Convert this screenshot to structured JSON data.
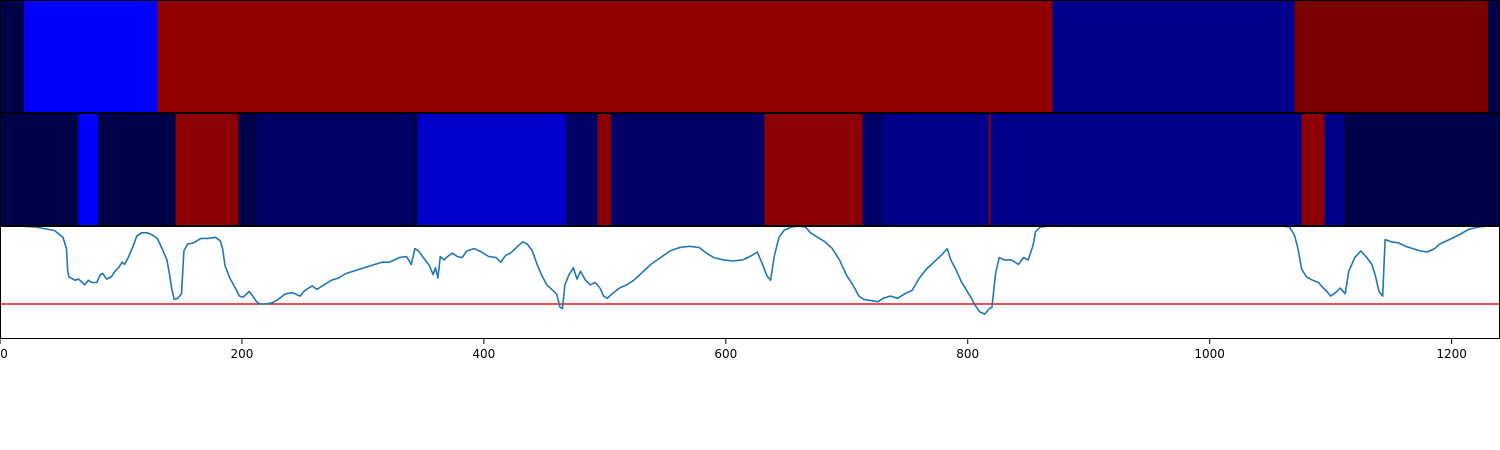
{
  "chart_data": [
    {
      "type": "heatmap",
      "title": "",
      "xlim": [
        0,
        1240
      ],
      "colors": {
        "dark_navy": "#000348",
        "navy": "#000066",
        "medium_blue": "#00008b",
        "bright_blue": "#0000ff",
        "royal_blue": "#0000c8",
        "dark_red": "#8b0000",
        "red": "#920000",
        "maroon": "#780000"
      },
      "segments": [
        {
          "x0": 0,
          "x1": 20,
          "color": "#000348"
        },
        {
          "x0": 20,
          "x1": 130,
          "color": "#0000ff"
        },
        {
          "x0": 130,
          "x1": 870,
          "color": "#920000"
        },
        {
          "x0": 870,
          "x1": 1070,
          "color": "#00008b"
        },
        {
          "x0": 1070,
          "x1": 1230,
          "color": "#780000"
        },
        {
          "x0": 1230,
          "x1": 1240,
          "color": "#000348"
        }
      ]
    },
    {
      "type": "heatmap",
      "title": "",
      "xlim": [
        0,
        1240
      ],
      "segments": [
        {
          "x0": 0,
          "x1": 65,
          "color": "#000348"
        },
        {
          "x0": 65,
          "x1": 81,
          "color": "#0000ff"
        },
        {
          "x0": 81,
          "x1": 145,
          "color": "#000348"
        },
        {
          "x0": 145,
          "x1": 197,
          "color": "#8b0000"
        },
        {
          "x0": 197,
          "x1": 212,
          "color": "#000348"
        },
        {
          "x0": 212,
          "x1": 340,
          "color": "#000066"
        },
        {
          "x0": 340,
          "x1": 345,
          "color": "#000348"
        },
        {
          "x0": 345,
          "x1": 468,
          "color": "#0000c8"
        },
        {
          "x0": 468,
          "x1": 494,
          "color": "#000066"
        },
        {
          "x0": 494,
          "x1": 505,
          "color": "#8b0000"
        },
        {
          "x0": 505,
          "x1": 632,
          "color": "#000066"
        },
        {
          "x0": 632,
          "x1": 713,
          "color": "#8b0000"
        },
        {
          "x0": 713,
          "x1": 730,
          "color": "#000066"
        },
        {
          "x0": 730,
          "x1": 817,
          "color": "#00008b"
        },
        {
          "x0": 817,
          "x1": 819,
          "color": "#8b0000"
        },
        {
          "x0": 819,
          "x1": 1076,
          "color": "#00008b"
        },
        {
          "x0": 1076,
          "x1": 1095,
          "color": "#8b0000"
        },
        {
          "x0": 1095,
          "x1": 1111,
          "color": "#00008b"
        },
        {
          "x0": 1111,
          "x1": 1240,
          "color": "#000348"
        }
      ]
    },
    {
      "type": "line",
      "title": "",
      "xlabel": "",
      "ylabel": "",
      "xlim": [
        0,
        1240
      ],
      "ylim": [
        0,
        1
      ],
      "grid": false,
      "x_ticks": [
        0,
        200,
        400,
        600,
        800,
        1000,
        1200
      ],
      "x_tick_labels": [
        "0",
        "200",
        "400",
        "600",
        "800",
        "1000",
        "1200"
      ],
      "threshold": {
        "y": 0.31,
        "color": "#e31a1c"
      },
      "series": [
        {
          "color": "#1f77b4",
          "points": [
            [
              0,
              1.0
            ],
            [
              15,
              1.0
            ],
            [
              30,
              0.99
            ],
            [
              45,
              0.96
            ],
            [
              52,
              0.9
            ],
            [
              55,
              0.8
            ],
            [
              56,
              0.6
            ],
            [
              57,
              0.55
            ],
            [
              62,
              0.52
            ],
            [
              65,
              0.53
            ],
            [
              68,
              0.5
            ],
            [
              70,
              0.48
            ],
            [
              73,
              0.52
            ],
            [
              76,
              0.5
            ],
            [
              80,
              0.5
            ],
            [
              83,
              0.57
            ],
            [
              85,
              0.58
            ],
            [
              88,
              0.53
            ],
            [
              92,
              0.55
            ],
            [
              95,
              0.6
            ],
            [
              98,
              0.63
            ],
            [
              101,
              0.68
            ],
            [
              103,
              0.66
            ],
            [
              106,
              0.72
            ],
            [
              110,
              0.82
            ],
            [
              113,
              0.91
            ],
            [
              117,
              0.94
            ],
            [
              122,
              0.94
            ],
            [
              126,
              0.92
            ],
            [
              130,
              0.89
            ],
            [
              134,
              0.8
            ],
            [
              138,
              0.7
            ],
            [
              140,
              0.58
            ],
            [
              142,
              0.44
            ],
            [
              144,
              0.35
            ],
            [
              147,
              0.36
            ],
            [
              150,
              0.4
            ],
            [
              152,
              0.78
            ],
            [
              155,
              0.84
            ],
            [
              160,
              0.85
            ],
            [
              166,
              0.89
            ],
            [
              172,
              0.89
            ],
            [
              178,
              0.9
            ],
            [
              182,
              0.87
            ],
            [
              184,
              0.8
            ],
            [
              186,
              0.65
            ],
            [
              190,
              0.54
            ],
            [
              193,
              0.48
            ],
            [
              196,
              0.42
            ],
            [
              198,
              0.38
            ],
            [
              201,
              0.37
            ],
            [
              204,
              0.4
            ],
            [
              206,
              0.42
            ],
            [
              209,
              0.38
            ],
            [
              212,
              0.33
            ],
            [
              215,
              0.31
            ],
            [
              220,
              0.31
            ],
            [
              225,
              0.32
            ],
            [
              230,
              0.35
            ],
            [
              236,
              0.4
            ],
            [
              242,
              0.41
            ],
            [
              248,
              0.38
            ],
            [
              252,
              0.43
            ],
            [
              258,
              0.47
            ],
            [
              262,
              0.44
            ],
            [
              268,
              0.48
            ],
            [
              274,
              0.52
            ],
            [
              280,
              0.54
            ],
            [
              286,
              0.58
            ],
            [
              292,
              0.6
            ],
            [
              298,
              0.62
            ],
            [
              304,
              0.64
            ],
            [
              310,
              0.66
            ],
            [
              316,
              0.68
            ],
            [
              322,
              0.68
            ],
            [
              326,
              0.7
            ],
            [
              330,
              0.72
            ],
            [
              336,
              0.73
            ],
            [
              340,
              0.66
            ],
            [
              343,
              0.8
            ],
            [
              346,
              0.78
            ],
            [
              350,
              0.72
            ],
            [
              355,
              0.65
            ],
            [
              358,
              0.57
            ],
            [
              360,
              0.63
            ],
            [
              362,
              0.54
            ],
            [
              364,
              0.73
            ],
            [
              367,
              0.7
            ],
            [
              370,
              0.73
            ],
            [
              374,
              0.76
            ],
            [
              378,
              0.73
            ],
            [
              382,
              0.72
            ],
            [
              386,
              0.78
            ],
            [
              392,
              0.8
            ],
            [
              398,
              0.77
            ],
            [
              404,
              0.73
            ],
            [
              410,
              0.72
            ],
            [
              414,
              0.68
            ],
            [
              418,
              0.74
            ],
            [
              422,
              0.76
            ],
            [
              426,
              0.8
            ],
            [
              432,
              0.86
            ],
            [
              436,
              0.84
            ],
            [
              440,
              0.78
            ],
            [
              444,
              0.66
            ],
            [
              448,
              0.56
            ],
            [
              452,
              0.48
            ],
            [
              456,
              0.44
            ],
            [
              460,
              0.4
            ],
            [
              463,
              0.28
            ],
            [
              465,
              0.27
            ],
            [
              467,
              0.48
            ],
            [
              470,
              0.56
            ],
            [
              474,
              0.63
            ],
            [
              477,
              0.53
            ],
            [
              480,
              0.6
            ],
            [
              484,
              0.52
            ],
            [
              488,
              0.48
            ],
            [
              492,
              0.5
            ],
            [
              496,
              0.45
            ],
            [
              499,
              0.38
            ],
            [
              502,
              0.36
            ],
            [
              506,
              0.4
            ],
            [
              512,
              0.45
            ],
            [
              518,
              0.48
            ],
            [
              524,
              0.52
            ],
            [
              530,
              0.58
            ],
            [
              538,
              0.66
            ],
            [
              546,
              0.72
            ],
            [
              554,
              0.78
            ],
            [
              562,
              0.81
            ],
            [
              570,
              0.82
            ],
            [
              578,
              0.81
            ],
            [
              584,
              0.76
            ],
            [
              590,
              0.72
            ],
            [
              598,
              0.7
            ],
            [
              606,
              0.69
            ],
            [
              614,
              0.7
            ],
            [
              620,
              0.73
            ],
            [
              626,
              0.77
            ],
            [
              630,
              0.67
            ],
            [
              634,
              0.56
            ],
            [
              637,
              0.52
            ],
            [
              640,
              0.73
            ],
            [
              644,
              0.9
            ],
            [
              648,
              0.96
            ],
            [
              654,
              0.99
            ],
            [
              660,
              1.0
            ],
            [
              666,
              0.99
            ],
            [
              670,
              0.94
            ],
            [
              676,
              0.9
            ],
            [
              682,
              0.86
            ],
            [
              688,
              0.8
            ],
            [
              694,
              0.7
            ],
            [
              700,
              0.56
            ],
            [
              705,
              0.48
            ],
            [
              710,
              0.38
            ],
            [
              714,
              0.35
            ],
            [
              720,
              0.34
            ],
            [
              726,
              0.33
            ],
            [
              730,
              0.36
            ],
            [
              736,
              0.38
            ],
            [
              742,
              0.36
            ],
            [
              748,
              0.4
            ],
            [
              754,
              0.43
            ],
            [
              760,
              0.54
            ],
            [
              766,
              0.62
            ],
            [
              772,
              0.68
            ],
            [
              778,
              0.74
            ],
            [
              783,
              0.8
            ],
            [
              786,
              0.7
            ],
            [
              790,
              0.62
            ],
            [
              795,
              0.5
            ],
            [
              798,
              0.45
            ],
            [
              803,
              0.36
            ],
            [
              806,
              0.3
            ],
            [
              810,
              0.24
            ],
            [
              814,
              0.22
            ],
            [
              818,
              0.27
            ],
            [
              820,
              0.28
            ],
            [
              823,
              0.58
            ],
            [
              826,
              0.72
            ],
            [
              830,
              0.7
            ],
            [
              836,
              0.7
            ],
            [
              842,
              0.66
            ],
            [
              846,
              0.72
            ],
            [
              850,
              0.7
            ],
            [
              854,
              0.83
            ],
            [
              856,
              0.95
            ],
            [
              860,
              0.99
            ],
            [
              868,
              1.0
            ],
            [
              900,
              1.0
            ],
            [
              1000,
              1.0
            ],
            [
              1060,
              1.0
            ],
            [
              1066,
              0.99
            ],
            [
              1070,
              0.92
            ],
            [
              1073,
              0.8
            ],
            [
              1076,
              0.62
            ],
            [
              1080,
              0.55
            ],
            [
              1085,
              0.52
            ],
            [
              1090,
              0.5
            ],
            [
              1094,
              0.45
            ],
            [
              1097,
              0.42
            ],
            [
              1100,
              0.38
            ],
            [
              1104,
              0.41
            ],
            [
              1108,
              0.45
            ],
            [
              1112,
              0.4
            ],
            [
              1115,
              0.6
            ],
            [
              1120,
              0.72
            ],
            [
              1125,
              0.78
            ],
            [
              1130,
              0.72
            ],
            [
              1134,
              0.66
            ],
            [
              1137,
              0.56
            ],
            [
              1140,
              0.42
            ],
            [
              1143,
              0.38
            ],
            [
              1145,
              0.88
            ],
            [
              1150,
              0.86
            ],
            [
              1156,
              0.85
            ],
            [
              1162,
              0.82
            ],
            [
              1168,
              0.8
            ],
            [
              1174,
              0.78
            ],
            [
              1180,
              0.77
            ],
            [
              1186,
              0.8
            ],
            [
              1190,
              0.84
            ],
            [
              1198,
              0.88
            ],
            [
              1206,
              0.92
            ],
            [
              1214,
              0.97
            ],
            [
              1222,
              0.99
            ],
            [
              1230,
              1.0
            ],
            [
              1240,
              1.0
            ]
          ]
        }
      ]
    }
  ]
}
